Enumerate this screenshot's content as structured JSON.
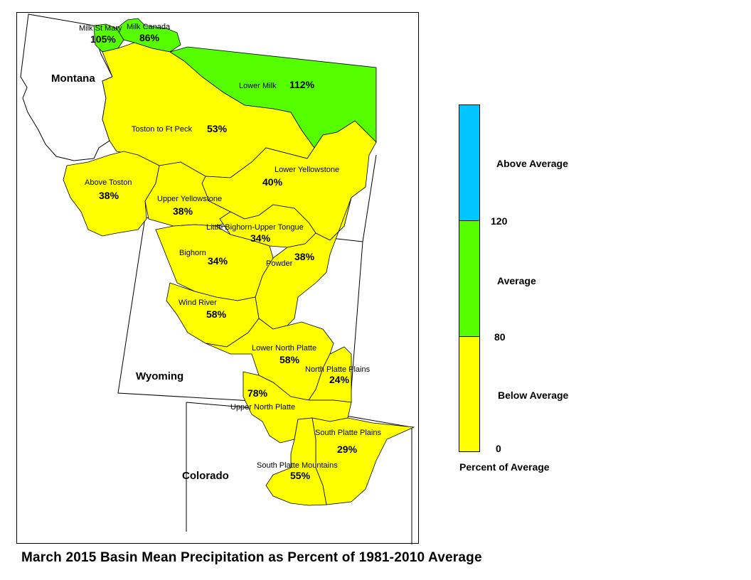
{
  "title": "March 2015 Basin Mean Precipitation as Percent of 1981-2010 Average",
  "states": [
    "Montana",
    "Wyoming",
    "Colorado"
  ],
  "colors": {
    "above": "#00c5ff",
    "average": "#55ff00",
    "below": "#ffff00"
  },
  "basins": [
    {
      "name": "Milk St Mary",
      "value": "105%",
      "category": "average"
    },
    {
      "name": "Milk Canada",
      "value": "86%",
      "category": "average"
    },
    {
      "name": "Lower Milk",
      "value": "112%",
      "category": "average"
    },
    {
      "name": "Toston to Ft Peck",
      "value": "53%",
      "category": "below"
    },
    {
      "name": "Above Toston",
      "value": "38%",
      "category": "below"
    },
    {
      "name": "Lower Yellowstone",
      "value": "40%",
      "category": "below"
    },
    {
      "name": "Upper Yellowstone",
      "value": "38%",
      "category": "below"
    },
    {
      "name": "Little Bighorn-Upper Tongue",
      "value": "34%",
      "category": "below"
    },
    {
      "name": "Bighorn",
      "value": "34%",
      "category": "below"
    },
    {
      "name": "Powder",
      "value": "38%",
      "category": "below"
    },
    {
      "name": "Wind River",
      "value": "58%",
      "category": "below"
    },
    {
      "name": "Lower North Platte",
      "value": "58%",
      "category": "below"
    },
    {
      "name": "North Platte Plains",
      "value": "24%",
      "category": "below"
    },
    {
      "name": "Upper North Platte",
      "value": "78%",
      "category": "below"
    },
    {
      "name": "South Platte Plains",
      "value": "29%",
      "category": "below"
    },
    {
      "name": "South Platte Mountains",
      "value": "55%",
      "category": "below"
    }
  ],
  "legend": {
    "title": "Percent of Average",
    "categories": [
      {
        "label": "Above Average",
        "color": "#00c5ff"
      },
      {
        "label": "Average",
        "color": "#55ff00"
      },
      {
        "label": "Below Average",
        "color": "#ffff00"
      }
    ],
    "breaks": [
      "120",
      "80",
      "0"
    ]
  }
}
